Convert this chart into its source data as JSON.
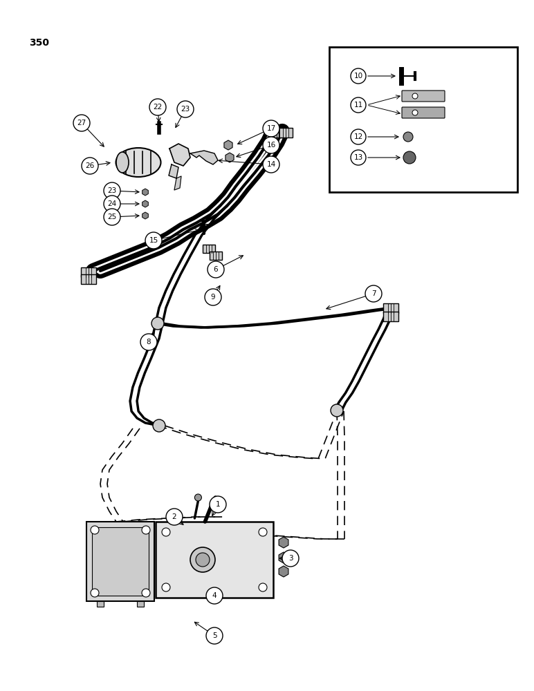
{
  "bg_color": "#ffffff",
  "page_number": "350",
  "figsize": [
    7.72,
    10.0
  ],
  "dpi": 100
}
